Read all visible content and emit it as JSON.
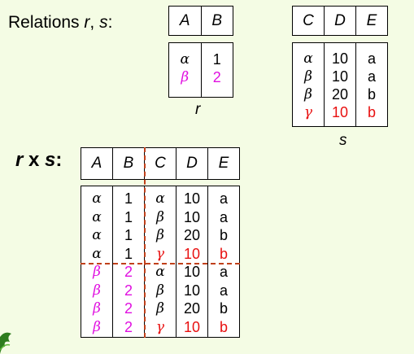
{
  "title": {
    "prefix": "Relations ",
    "r": "r",
    "sep": ", ",
    "s": "s",
    "suffix": ":"
  },
  "product_label": {
    "r": "r",
    "op": " x ",
    "s": "s",
    "colon": ":"
  },
  "relation_r": {
    "name": "r",
    "columns": [
      "A",
      "B"
    ],
    "rows": [
      {
        "A": "α",
        "B": "1",
        "color": "black"
      },
      {
        "A": "β",
        "B": "2",
        "color": "magenta"
      }
    ]
  },
  "relation_s": {
    "name": "s",
    "columns": [
      "C",
      "D",
      "E"
    ],
    "rows": [
      {
        "C": "α",
        "D": "10",
        "E": "a",
        "color": "black"
      },
      {
        "C": "β",
        "D": "10",
        "E": "a",
        "color": "black"
      },
      {
        "C": "β",
        "D": "20",
        "E": "b",
        "color": "black"
      },
      {
        "C": "γ",
        "D": "10",
        "E": "b",
        "color": "red"
      }
    ]
  },
  "product": {
    "columns": [
      "A",
      "B",
      "C",
      "D",
      "E"
    ],
    "rows": [
      [
        "α",
        "1",
        "α",
        "10",
        "a"
      ],
      [
        "α",
        "1",
        "β",
        "10",
        "a"
      ],
      [
        "α",
        "1",
        "β",
        "20",
        "b"
      ],
      [
        "α",
        "1",
        "γ",
        "10",
        "b"
      ],
      [
        "β",
        "2",
        "α",
        "10",
        "a"
      ],
      [
        "β",
        "2",
        "β",
        "10",
        "a"
      ],
      [
        "β",
        "2",
        "β",
        "20",
        "b"
      ],
      [
        "β",
        "2",
        "γ",
        "10",
        "b"
      ]
    ]
  },
  "colors": {
    "magenta": "#e010e0",
    "red": "#e81010",
    "background": "#f4fce4",
    "dash": "#c0401a"
  }
}
